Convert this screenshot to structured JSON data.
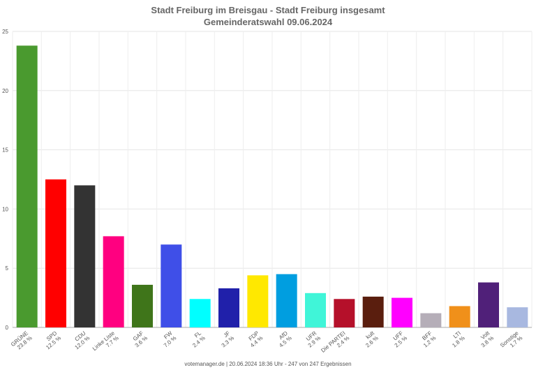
{
  "chart_data": {
    "type": "bar",
    "title": "Stadt Freiburg im Breisgau - Stadt Freiburg insgesamt",
    "subtitle": "Gemeinderatswahl 09.06.2024",
    "footer": "votemanager.de | 20.06.2024 18:36 Uhr - 247 von 247 Ergebnissen",
    "categories": [
      "GRÜNE",
      "SPD",
      "CDU",
      "Linke Liste",
      "GAF",
      "FW",
      "FL",
      "JF",
      "FDP",
      "AfD",
      "UFR",
      "Die PARTEI",
      "kult",
      "UFF",
      "BFF",
      "LTI",
      "Volt",
      "Sonstige"
    ],
    "values": [
      23.8,
      12.5,
      12.0,
      7.7,
      3.6,
      7.0,
      2.4,
      3.3,
      4.4,
      4.5,
      2.9,
      2.4,
      2.6,
      2.5,
      1.2,
      1.8,
      3.8,
      1.7
    ],
    "value_labels": [
      "23.8 %",
      "12.5 %",
      "12.0 %",
      "7.7 %",
      "3.6 %",
      "7.0 %",
      "2.4 %",
      "3.3 %",
      "4.4 %",
      "4.5 %",
      "2.9 %",
      "2.4 %",
      "2.6 %",
      "2.5 %",
      "1.2 %",
      "1.8 %",
      "3.8 %",
      "1.7 %"
    ],
    "colors": [
      "#4a9a2f",
      "#ff0000",
      "#333333",
      "#ff0080",
      "#3f751a",
      "#3f4fe8",
      "#00ffff",
      "#2020aa",
      "#ffe800",
      "#009ee0",
      "#40f5d8",
      "#b5102a",
      "#5a1e0e",
      "#ff00ff",
      "#b5aeb8",
      "#f0901a",
      "#502079",
      "#a8b8e0"
    ],
    "ylim": [
      0,
      25
    ],
    "yticks": [
      0,
      5,
      10,
      15,
      20,
      25
    ],
    "grid": true
  }
}
